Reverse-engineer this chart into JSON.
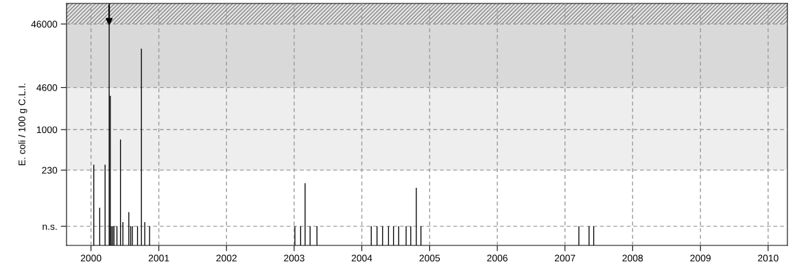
{
  "chart_data": {
    "type": "bar",
    "ylabel": "E. coli / 100 g C.L.I.",
    "x": [
      "2000-01-16",
      "2000-02-17",
      "2000-03-17",
      "2000-04-08",
      "2000-04-14",
      "2000-04-19",
      "2000-04-27",
      "2000-05-04",
      "2000-05-20",
      "2000-06-08",
      "2000-06-21",
      "2000-07-23",
      "2000-08-02",
      "2000-08-11",
      "2000-09-08",
      "2000-09-29",
      "2000-10-17",
      "2000-11-12",
      "2003-01-05",
      "2003-02-05",
      "2003-03-01",
      "2003-03-28",
      "2003-05-04",
      "2004-02-21",
      "2004-03-23",
      "2004-04-22",
      "2004-05-24",
      "2004-06-20",
      "2004-07-18",
      "2004-08-27",
      "2004-09-21",
      "2004-10-21",
      "2004-11-15",
      "2007-03-17",
      "2007-05-11",
      "2007-06-05"
    ],
    "values": [
      280,
      59,
      280,
      97000,
      3400,
      30,
      30,
      30,
      30,
      700,
      35,
      50,
      30,
      30,
      30,
      18800,
      35,
      30,
      30,
      30,
      143,
      30,
      30,
      30,
      30,
      30,
      30,
      30,
      30,
      30,
      30,
      121,
      30,
      30,
      30,
      30
    ],
    "color": "#000000",
    "log": "y",
    "ylim": [
      15,
      97000
    ],
    "yticks": [
      {
        "value": 30,
        "label": "n.s."
      },
      230,
      1000,
      4600,
      46000
    ],
    "xlim": [
      "1999-08-22",
      "2010-04-15"
    ],
    "xticks": [
      "2000",
      "2001",
      "2002",
      "2003",
      "2004",
      "2005",
      "2006",
      "2007",
      "2008",
      "2009",
      "2010"
    ],
    "bands": [
      {
        "axis": "y",
        "from": 230,
        "to": 4600,
        "color": "#eeeeee"
      },
      {
        "axis": "y",
        "from": 4600,
        "to": 46000,
        "color": "#d9d9d9"
      },
      {
        "axis": "y",
        "from": 46000,
        "to": 97000,
        "color": "#e4e4e4"
      }
    ],
    "grid": true
  }
}
